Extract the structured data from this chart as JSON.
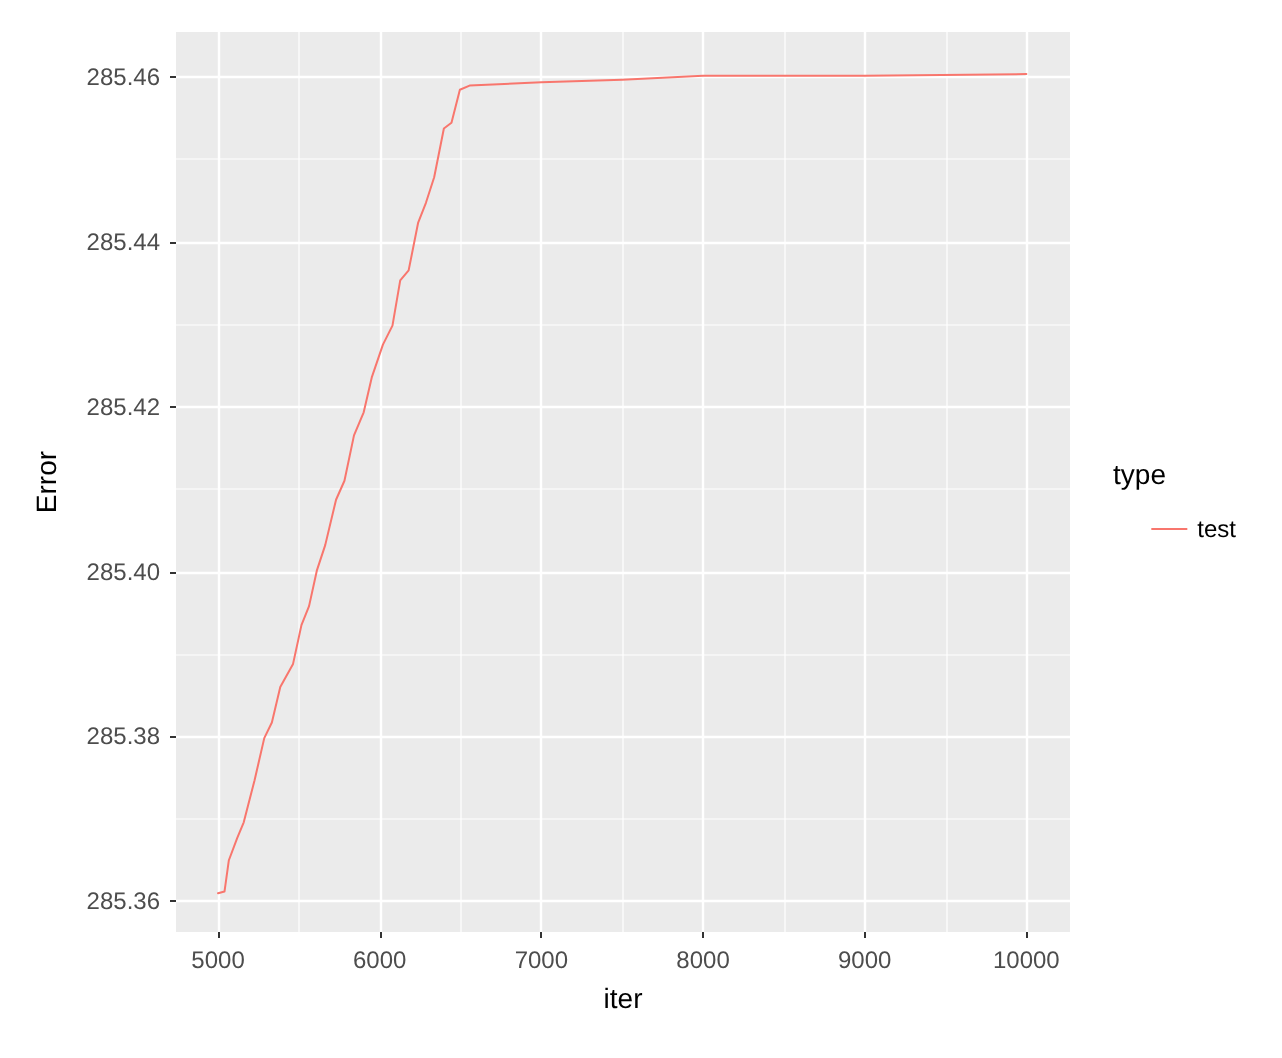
{
  "chart_data": {
    "type": "line",
    "xlabel": "iter",
    "ylabel": "Error",
    "legend_title": "type",
    "legend": "right",
    "grid": true,
    "marker": "none",
    "line_style": "solid",
    "xlim": [
      4740,
      10270
    ],
    "xticks": [
      5000,
      6000,
      7000,
      8000,
      9000,
      10000
    ],
    "ylim": [
      285.3563,
      285.4654
    ],
    "yticks": [
      {
        "value": 285.36,
        "label": "285.36"
      },
      {
        "value": 285.38,
        "label": "285.38"
      },
      {
        "value": 285.4,
        "label": "285.40"
      },
      {
        "value": 285.42,
        "label": "285.42"
      },
      {
        "value": 285.44,
        "label": "285.44"
      },
      {
        "value": 285.46,
        "label": "285.46"
      }
    ],
    "series": [
      {
        "name": "test",
        "color": "#f8766d",
        "x": [
          5000,
          5040,
          5067,
          5119,
          5159,
          5226,
          5286,
          5333,
          5385,
          5464,
          5516,
          5563,
          5611,
          5663,
          5730,
          5782,
          5841,
          5901,
          5952,
          6020,
          6079,
          6127,
          6179,
          6238,
          6286,
          6337,
          6397,
          6444,
          6496,
          6556,
          7000,
          7500,
          8000,
          9000,
          10000
        ],
        "values": [
          285.361,
          285.3612,
          285.365,
          285.3677,
          285.3696,
          285.3747,
          285.3798,
          285.3817,
          285.386,
          285.3888,
          285.3935,
          285.3958,
          285.4001,
          285.4032,
          285.4087,
          285.411,
          285.4165,
          285.4193,
          285.4236,
          285.4275,
          285.4298,
          285.4353,
          285.4365,
          285.4423,
          285.4447,
          285.4478,
          285.4537,
          285.4544,
          285.4584,
          285.4589,
          285.4593,
          285.4596,
          285.4601,
          285.4601,
          285.4603
        ]
      }
    ]
  }
}
